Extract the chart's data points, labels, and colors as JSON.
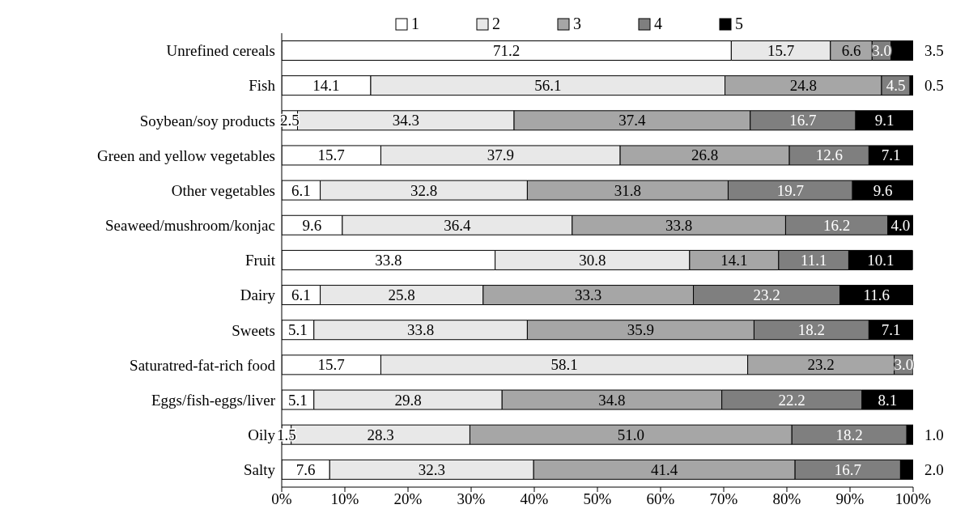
{
  "chart_data": {
    "type": "bar",
    "orientation": "horizontal",
    "stacked": true,
    "categories": [
      "Unrefined cereals",
      "Fish",
      "Soybean/soy products",
      "Green and yellow vegetables",
      "Other vegetables",
      "Seaweed/mushroom/konjac",
      "Fruit",
      "Dairy",
      "Sweets",
      "Saturatred-fat-rich food",
      "Eggs/fish-eggs/liver",
      "Oily",
      "Salty"
    ],
    "series": [
      {
        "name": "1",
        "color": "#ffffff",
        "values": [
          71.2,
          14.1,
          2.5,
          15.7,
          6.1,
          9.6,
          33.8,
          6.1,
          5.1,
          15.7,
          5.1,
          1.5,
          7.6
        ],
        "value_labels": [
          "71.2",
          "14.1",
          "2.5",
          "15.7",
          "6.1",
          "9.6",
          "33.8",
          "6.1",
          "5.1",
          "15.7",
          "5.1",
          "1.5",
          "7.6"
        ]
      },
      {
        "name": "2",
        "color": "#e8e8e8",
        "values": [
          15.7,
          56.1,
          34.3,
          37.9,
          32.8,
          36.4,
          30.8,
          25.8,
          33.8,
          58.1,
          29.8,
          28.3,
          32.3
        ],
        "value_labels": [
          "15.7",
          "56.1",
          "34.3",
          "37.9",
          "32.8",
          "36.4",
          "30.8",
          "25.8",
          "33.8",
          "58.1",
          "29.8",
          "28.3",
          "32.3"
        ]
      },
      {
        "name": "3",
        "color": "#a6a6a6",
        "values": [
          6.6,
          24.8,
          37.4,
          26.8,
          31.8,
          33.8,
          14.1,
          33.3,
          35.9,
          23.2,
          34.8,
          51.0,
          41.4
        ],
        "value_labels": [
          "6.6",
          "24.8",
          "37.4",
          "26.8",
          "31.8",
          "33.8",
          "14.1",
          "33.3",
          "35.9",
          "23.2",
          "34.8",
          "51.0",
          "41.4"
        ]
      },
      {
        "name": "4",
        "color": "#7f7f7f",
        "values": [
          3.0,
          4.5,
          16.7,
          12.6,
          19.7,
          16.2,
          11.1,
          23.2,
          18.2,
          3.0,
          22.2,
          18.2,
          16.7
        ],
        "value_labels": [
          "3.0",
          "4.5",
          "16.7",
          "12.6",
          "19.7",
          "16.2",
          "11.1",
          "23.2",
          "18.2",
          "3.0",
          "22.2",
          "18.2",
          "16.7"
        ]
      },
      {
        "name": "5",
        "color": "#000000",
        "values": [
          3.5,
          0.5,
          9.1,
          7.1,
          9.6,
          4.0,
          10.1,
          11.6,
          7.1,
          null,
          8.1,
          1.0,
          2.0
        ],
        "value_labels": [
          "3.5",
          "0.5",
          "9.1",
          "7.1",
          "9.6",
          "4.0",
          "10.1",
          "11.6",
          "7.1",
          null,
          "8.1",
          "1.0",
          "2.0"
        ]
      }
    ],
    "xlim": [
      0,
      100
    ],
    "xticks": [
      {
        "value": 0,
        "label": "0%"
      },
      {
        "value": 10,
        "label": "10%"
      },
      {
        "value": 20,
        "label": "20%"
      },
      {
        "value": 30,
        "label": "30%"
      },
      {
        "value": 40,
        "label": "40%"
      },
      {
        "value": 50,
        "label": "50%"
      },
      {
        "value": 60,
        "label": "60%"
      },
      {
        "value": 70,
        "label": "70%"
      },
      {
        "value": 80,
        "label": "80%"
      },
      {
        "value": 90,
        "label": "90%"
      },
      {
        "value": 100,
        "label": "100%"
      }
    ],
    "grid": false,
    "legend": "top"
  }
}
